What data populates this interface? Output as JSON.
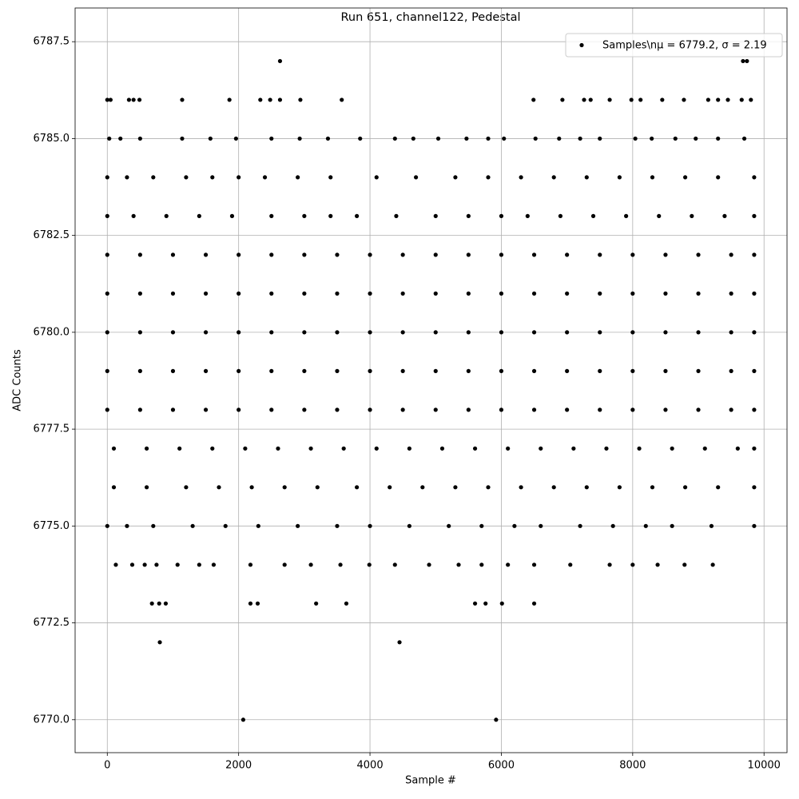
{
  "chart_data": {
    "type": "scatter",
    "title": "Run 651, channel122, Pedestal",
    "xlabel": "Sample #",
    "ylabel": "ADC Counts",
    "grid": true,
    "legend": "upper right",
    "xlim": [
      -490,
      10350
    ],
    "ylim": [
      6769.15,
      6788.37
    ],
    "xticks": [
      0,
      2000,
      4000,
      6000,
      8000,
      10000
    ],
    "yticks": [
      {
        "value": 6770,
        "label": "6770.0"
      },
      {
        "value": 6772.5,
        "label": "6772.5"
      },
      {
        "value": 6775,
        "label": "6775.0"
      },
      {
        "value": 6777.5,
        "label": "6777.5"
      },
      {
        "value": 6780,
        "label": "6780.0"
      },
      {
        "value": 6782.5,
        "label": "6782.5"
      },
      {
        "value": 6785,
        "label": "6785.0"
      },
      {
        "value": 6787.5,
        "label": "6787.5"
      }
    ],
    "series": [
      {
        "name": "Samples\\nμ = 6779.2, σ = 2.19",
        "color": "#000000",
        "x": [
          0,
          500,
          1000,
          1500,
          2000,
          2500,
          3000,
          3500,
          4000,
          4500,
          5000,
          5500,
          6000,
          6500,
          7000,
          7500,
          8000,
          8500,
          9000,
          9500,
          9850,
          0,
          500,
          1000,
          1500,
          2000,
          2500,
          3000,
          3500,
          4000,
          4500,
          5000,
          5500,
          6000,
          6500,
          7000,
          7500,
          8000,
          8500,
          9000,
          9500,
          9850,
          0,
          500,
          1000,
          1500,
          2000,
          2500,
          3000,
          3500,
          4000,
          4500,
          5000,
          5500,
          6000,
          6500,
          7000,
          7500,
          8000,
          8500,
          9000,
          9500,
          9850,
          0,
          500,
          1000,
          1500,
          2000,
          2500,
          3000,
          3500,
          4000,
          4500,
          5000,
          5500,
          6000,
          6500,
          7000,
          7500,
          8000,
          8500,
          9000,
          9500,
          9850,
          0,
          500,
          1000,
          1500,
          2000,
          2500,
          3000,
          3500,
          4000,
          4500,
          5000,
          5500,
          6000,
          6500,
          7000,
          7500,
          8000,
          8500,
          9000,
          9500,
          9850,
          100,
          600,
          1100,
          1600,
          2100,
          2600,
          3100,
          3600,
          4100,
          4600,
          5100,
          5600,
          6100,
          6600,
          7100,
          7600,
          8100,
          8600,
          9100,
          9600,
          9850,
          0,
          400,
          900,
          1400,
          1900,
          2500,
          3000,
          3400,
          3800,
          4400,
          5000,
          5500,
          6000,
          6400,
          6900,
          7400,
          7900,
          8400,
          8900,
          9400,
          9850,
          100,
          600,
          1200,
          1700,
          2200,
          2700,
          3200,
          3800,
          4300,
          4800,
          5300,
          5800,
          6300,
          6800,
          7300,
          7800,
          8300,
          8800,
          9300,
          9850,
          0,
          300,
          700,
          1200,
          1600,
          2000,
          2400,
          2900,
          3400,
          4100,
          4700,
          5300,
          5800,
          6300,
          6800,
          7300,
          7800,
          8300,
          8800,
          9300,
          9850,
          0,
          300,
          700,
          1300,
          1800,
          2300,
          2900,
          3500,
          4000,
          4600,
          5200,
          5700,
          6200,
          6600,
          7200,
          7700,
          8200,
          8600,
          9200,
          9850,
          30,
          200,
          500,
          1140,
          1570,
          1960,
          2500,
          2930,
          3360,
          3850,
          4380,
          4660,
          5040,
          5470,
          5800,
          6040,
          6520,
          6880,
          7200,
          7500,
          8040,
          8290,
          8650,
          8960,
          9300,
          9700,
          130,
          380,
          570,
          750,
          1070,
          1400,
          1620,
          2180,
          2700,
          3100,
          3550,
          3990,
          4380,
          4900,
          5350,
          5700,
          6100,
          6500,
          7050,
          7650,
          8000,
          8380,
          8790,
          9220,
          680,
          790,
          890,
          2180,
          2290,
          3180,
          3640,
          5600,
          5760,
          6010,
          6500,
          0,
          50,
          330,
          400,
          490,
          1140,
          1860,
          2330,
          2480,
          2630,
          2940,
          3570,
          6490,
          6930,
          7260,
          7360,
          7650,
          7980,
          8120,
          8450,
          8780,
          9150,
          9300,
          9450,
          9660,
          9800,
          2070,
          5920,
          800,
          4450,
          2630,
          9680,
          9740
        ],
        "values": [
          6782,
          6782,
          6782,
          6782,
          6782,
          6782,
          6782,
          6782,
          6782,
          6782,
          6782,
          6782,
          6782,
          6782,
          6782,
          6782,
          6782,
          6782,
          6782,
          6782,
          6782,
          6781,
          6781,
          6781,
          6781,
          6781,
          6781,
          6781,
          6781,
          6781,
          6781,
          6781,
          6781,
          6781,
          6781,
          6781,
          6781,
          6781,
          6781,
          6781,
          6781,
          6781,
          6780,
          6780,
          6780,
          6780,
          6780,
          6780,
          6780,
          6780,
          6780,
          6780,
          6780,
          6780,
          6780,
          6780,
          6780,
          6780,
          6780,
          6780,
          6780,
          6780,
          6780,
          6779,
          6779,
          6779,
          6779,
          6779,
          6779,
          6779,
          6779,
          6779,
          6779,
          6779,
          6779,
          6779,
          6779,
          6779,
          6779,
          6779,
          6779,
          6779,
          6779,
          6779,
          6778,
          6778,
          6778,
          6778,
          6778,
          6778,
          6778,
          6778,
          6778,
          6778,
          6778,
          6778,
          6778,
          6778,
          6778,
          6778,
          6778,
          6778,
          6778,
          6778,
          6778,
          6777,
          6777,
          6777,
          6777,
          6777,
          6777,
          6777,
          6777,
          6777,
          6777,
          6777,
          6777,
          6777,
          6777,
          6777,
          6777,
          6777,
          6777,
          6777,
          6777,
          6777,
          6783,
          6783,
          6783,
          6783,
          6783,
          6783,
          6783,
          6783,
          6783,
          6783,
          6783,
          6783,
          6783,
          6783,
          6783,
          6783,
          6783,
          6783,
          6783,
          6783,
          6783,
          6776,
          6776,
          6776,
          6776,
          6776,
          6776,
          6776,
          6776,
          6776,
          6776,
          6776,
          6776,
          6776,
          6776,
          6776,
          6776,
          6776,
          6776,
          6776,
          6776,
          6784,
          6784,
          6784,
          6784,
          6784,
          6784,
          6784,
          6784,
          6784,
          6784,
          6784,
          6784,
          6784,
          6784,
          6784,
          6784,
          6784,
          6784,
          6784,
          6784,
          6784,
          6775,
          6775,
          6775,
          6775,
          6775,
          6775,
          6775,
          6775,
          6775,
          6775,
          6775,
          6775,
          6775,
          6775,
          6775,
          6775,
          6775,
          6775,
          6775,
          6775,
          6785,
          6785,
          6785,
          6785,
          6785,
          6785,
          6785,
          6785,
          6785,
          6785,
          6785,
          6785,
          6785,
          6785,
          6785,
          6785,
          6785,
          6785,
          6785,
          6785,
          6785,
          6785,
          6785,
          6785,
          6785,
          6785,
          6774,
          6774,
          6774,
          6774,
          6774,
          6774,
          6774,
          6774,
          6774,
          6774,
          6774,
          6774,
          6774,
          6774,
          6774,
          6774,
          6774,
          6774,
          6774,
          6774,
          6774,
          6774,
          6774,
          6774,
          6773,
          6773,
          6773,
          6773,
          6773,
          6773,
          6773,
          6773,
          6773,
          6773,
          6773,
          6786,
          6786,
          6786,
          6786,
          6786,
          6786,
          6786,
          6786,
          6786,
          6786,
          6786,
          6786,
          6786,
          6786,
          6786,
          6786,
          6786,
          6786,
          6786,
          6786,
          6786,
          6786,
          6786,
          6786,
          6786,
          6786,
          6770,
          6770,
          6772,
          6772,
          6787,
          6787,
          6787
        ]
      }
    ]
  }
}
